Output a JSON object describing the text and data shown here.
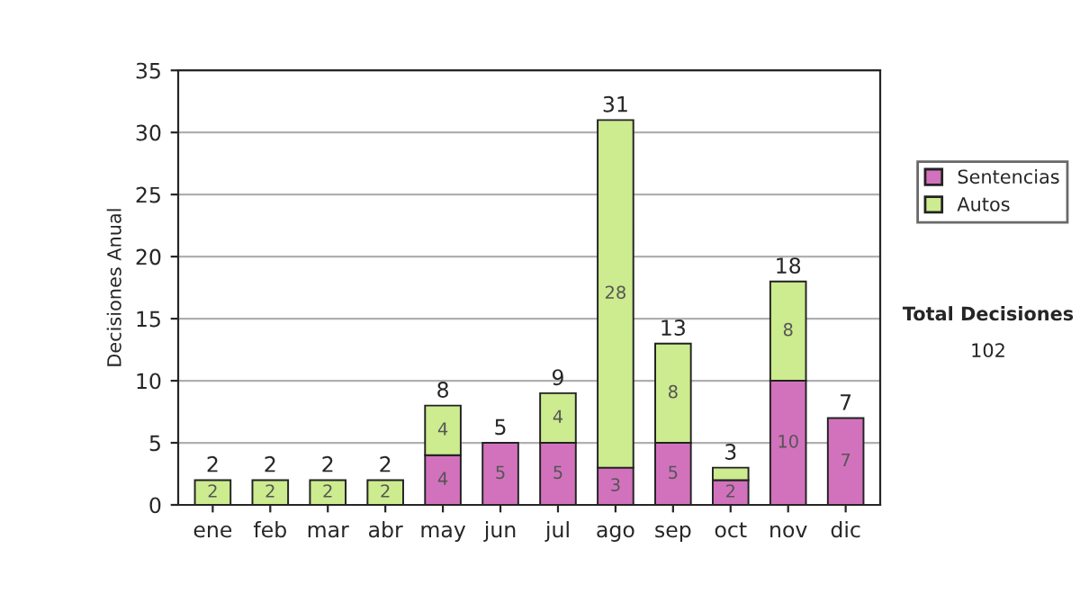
{
  "chart_data": {
    "type": "bar",
    "stacked": true,
    "ylabel": "Decisiones Anual",
    "categories": [
      "ene",
      "feb",
      "mar",
      "abr",
      "may",
      "jun",
      "jul",
      "ago",
      "sep",
      "oct",
      "nov",
      "dic"
    ],
    "series": [
      {
        "name": "Sentencias",
        "color": "#d272bd",
        "values": [
          0,
          0,
          0,
          0,
          4,
          5,
          5,
          3,
          5,
          2,
          10,
          7
        ],
        "value_labels": [
          null,
          null,
          null,
          null,
          "4",
          "5",
          "5",
          "3",
          "5",
          "2",
          "10",
          "7"
        ]
      },
      {
        "name": "Autos",
        "color": "#cdeb8f",
        "values": [
          2,
          2,
          2,
          2,
          4,
          0,
          4,
          28,
          8,
          1,
          8,
          0
        ],
        "value_labels": [
          "2",
          "2",
          "2",
          "2",
          "4",
          null,
          "4",
          "28",
          "8",
          null,
          "8",
          null
        ]
      }
    ],
    "totals": [
      "2",
      "2",
      "2",
      "2",
      "8",
      "5",
      "9",
      "31",
      "13",
      "3",
      "18",
      "7"
    ],
    "ylim": [
      0,
      35
    ],
    "yticks": [
      0,
      5,
      10,
      15,
      20,
      25,
      30,
      35
    ],
    "grid": "y",
    "legend": "right",
    "annotations": [
      "Total Decisiones",
      "102"
    ]
  }
}
